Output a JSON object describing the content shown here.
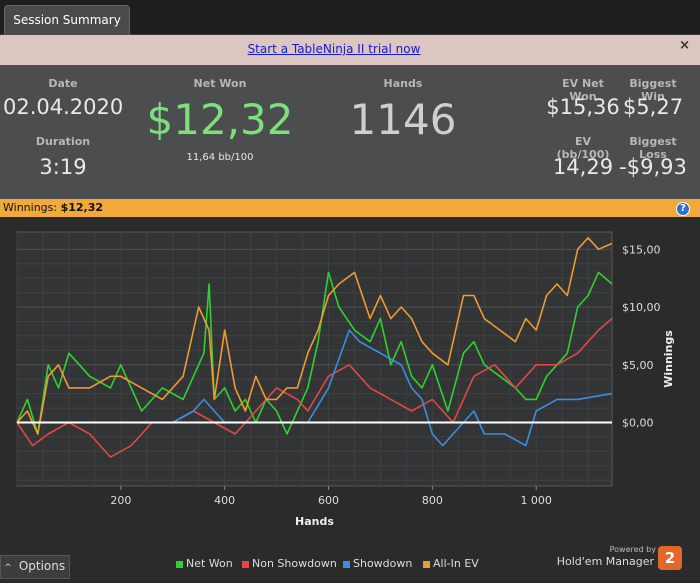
{
  "tab": {
    "label": "Session Summary"
  },
  "banner": {
    "link_text": "Start a TableNinja II trial now",
    "close": "×"
  },
  "stats": {
    "date_label": "Date",
    "date": "02.04.2020",
    "duration_label": "Duration",
    "duration": "3:19",
    "netwon_label": "Net Won",
    "netwon": "$12,32",
    "bb": "11,64 bb/100",
    "hands_label": "Hands",
    "hands": "1146",
    "ev_label": "EV Net Won",
    "ev": "$15,36",
    "bigwin_label": "Biggest Win",
    "bigwin": "$5,27",
    "evbb_label": "EV (bb/100)",
    "evbb": "14,29",
    "bigloss_label": "Biggest Loss",
    "bigloss": "-$9,93"
  },
  "winbar": {
    "label": "Winnings: ",
    "value": "$12,32",
    "help": "?"
  },
  "options": {
    "label": "Options",
    "caret": "^"
  },
  "brand": {
    "powered": "Powered by",
    "name": "Hold'em Manager",
    "badge": "2"
  },
  "colors": {
    "net": "#2fd12f",
    "nonsd": "#e04848",
    "sd": "#3a8fe0",
    "ev": "#f09a30"
  },
  "chart_data": {
    "type": "line",
    "xlabel": "Hands",
    "ylabel": "Winnings",
    "xlim": [
      0,
      1146
    ],
    "ylim": [
      -5.5,
      16.5
    ],
    "xticks": [
      200,
      400,
      600,
      800,
      1000
    ],
    "xtick_labels": [
      "200",
      "400",
      "600",
      "800",
      "1 000"
    ],
    "yticks": [
      0,
      5,
      10,
      15
    ],
    "ytick_labels": [
      "$0,00",
      "$5,00",
      "$10,00",
      "$15,00"
    ],
    "legend": "bottom",
    "series": [
      {
        "name": "Net Won",
        "key": "net",
        "x": [
          0,
          20,
          40,
          60,
          80,
          100,
          140,
          180,
          200,
          240,
          280,
          320,
          360,
          370,
          380,
          400,
          420,
          440,
          460,
          480,
          500,
          520,
          540,
          560,
          580,
          600,
          620,
          650,
          680,
          700,
          720,
          740,
          760,
          780,
          800,
          830,
          860,
          880,
          900,
          930,
          960,
          980,
          1000,
          1020,
          1040,
          1060,
          1080,
          1100,
          1120,
          1146
        ],
        "y": [
          0,
          2,
          -1,
          5,
          3,
          6,
          4,
          3,
          5,
          1,
          3,
          2,
          6,
          12,
          2,
          3,
          1,
          2,
          0,
          2,
          1,
          -1,
          1,
          3,
          7,
          13,
          10,
          8,
          7,
          9,
          5,
          7,
          4,
          3,
          5,
          1,
          6,
          7,
          5,
          4,
          3,
          2,
          2,
          4,
          5,
          6,
          10,
          11,
          13,
          12
        ]
      },
      {
        "name": "Non Showdown",
        "key": "nonsd",
        "x": [
          0,
          30,
          60,
          100,
          140,
          180,
          220,
          260,
          300,
          340,
          380,
          420,
          460,
          500,
          540,
          560,
          600,
          640,
          680,
          720,
          760,
          800,
          840,
          880,
          920,
          960,
          1000,
          1040,
          1080,
          1120,
          1146
        ],
        "y": [
          0,
          -2,
          -1,
          0,
          -1,
          -3,
          -2,
          0,
          0,
          1,
          0,
          -1,
          1,
          3,
          2,
          1,
          4,
          5,
          3,
          2,
          1,
          2,
          0,
          4,
          5,
          3,
          5,
          5,
          6,
          8,
          9
        ]
      },
      {
        "name": "Showdown",
        "key": "sd",
        "x": [
          0,
          100,
          200,
          300,
          340,
          360,
          380,
          400,
          500,
          540,
          560,
          600,
          640,
          660,
          700,
          740,
          760,
          780,
          800,
          820,
          840,
          860,
          880,
          900,
          940,
          980,
          1000,
          1040,
          1080,
          1146
        ],
        "y": [
          0,
          0,
          0,
          0,
          1,
          2,
          1,
          0,
          0,
          0,
          0,
          3,
          8,
          7,
          6,
          5,
          3,
          2,
          -1,
          -2,
          -1,
          0,
          1,
          -1,
          -1,
          -2,
          1,
          2,
          2,
          2.5
        ]
      },
      {
        "name": "All-In EV",
        "key": "ev",
        "x": [
          0,
          20,
          40,
          60,
          80,
          100,
          140,
          180,
          200,
          240,
          280,
          320,
          350,
          370,
          380,
          400,
          420,
          440,
          460,
          480,
          500,
          520,
          540,
          560,
          580,
          600,
          620,
          650,
          680,
          700,
          720,
          740,
          760,
          780,
          800,
          830,
          860,
          880,
          900,
          930,
          960,
          980,
          1000,
          1020,
          1040,
          1060,
          1080,
          1100,
          1120,
          1146
        ],
        "y": [
          0,
          1,
          -1,
          4,
          5,
          3,
          3,
          4,
          4,
          3,
          2,
          4,
          10,
          8,
          2,
          8,
          3,
          1,
          4,
          2,
          2,
          3,
          3,
          6,
          8,
          11,
          12,
          13,
          9,
          11,
          9,
          10,
          9,
          7,
          6,
          5,
          11,
          11,
          9,
          8,
          7,
          9,
          8,
          11,
          12,
          11,
          15,
          16,
          15,
          15.5
        ]
      }
    ]
  }
}
